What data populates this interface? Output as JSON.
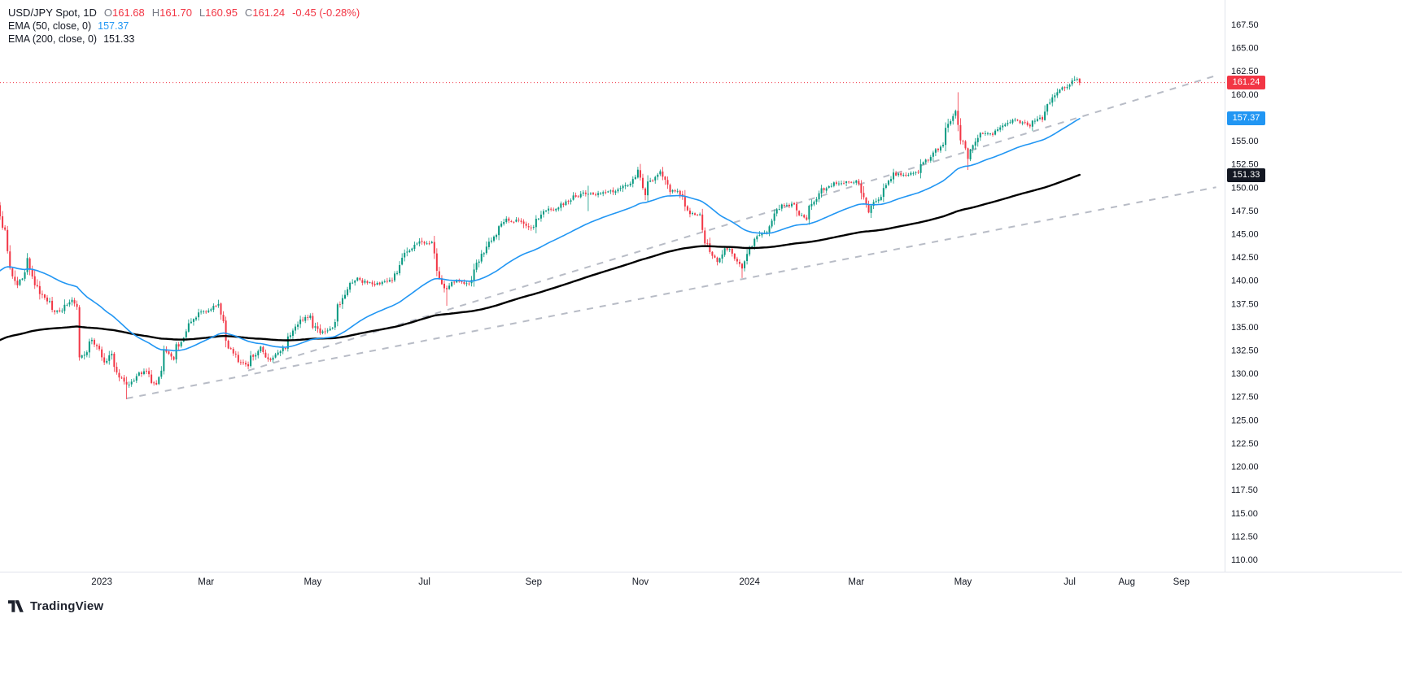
{
  "legend": {
    "symbol_title": "USD/JPY Spot, 1D",
    "ohlc": {
      "o_label": "O",
      "open": "161.68",
      "h_label": "H",
      "high": "161.70",
      "l_label": "L",
      "low": "160.95",
      "c_label": "C",
      "close": "161.24",
      "change": "-0.45 (-0.28%)"
    },
    "ema50": {
      "label": "EMA (50, close, 0)",
      "value": "157.37"
    },
    "ema200": {
      "label": "EMA (200, close, 0)",
      "value": "151.33"
    }
  },
  "badges": {
    "last_price": "161.24",
    "ema50": "157.37",
    "ema200": "151.33"
  },
  "logo": {
    "text": "TradingView"
  },
  "colors": {
    "up": "#089981",
    "down": "#F23645",
    "ema50": "#2196F3",
    "ema200": "#000000",
    "trend": "#B8BCC6",
    "axis_text": "#131722",
    "price_line": "#F23645",
    "axis_border": "#E0E3EB"
  },
  "chart_data": {
    "type": "candlestick",
    "symbol": "USD/JPY Spot",
    "interval": "1D",
    "title": "USD/JPY Spot, 1D",
    "last": {
      "open": 161.68,
      "high": 161.7,
      "low": 160.95,
      "close": 161.24,
      "change": -0.45,
      "change_pct": -0.28
    },
    "y_axis": {
      "min": 110.0,
      "max": 167.5,
      "step": 2.5
    },
    "x_axis": [
      {
        "label": "2023",
        "date": "2023-01-02"
      },
      {
        "label": "Mar",
        "date": "2023-03-01"
      },
      {
        "label": "May",
        "date": "2023-05-01"
      },
      {
        "label": "Jul",
        "date": "2023-07-03"
      },
      {
        "label": "Sep",
        "date": "2023-09-01"
      },
      {
        "label": "Nov",
        "date": "2023-11-01"
      },
      {
        "label": "2024",
        "date": "2024-01-02"
      },
      {
        "label": "Mar",
        "date": "2024-03-01"
      },
      {
        "label": "May",
        "date": "2024-05-01"
      },
      {
        "label": "Jul",
        "date": "2024-07-01"
      },
      {
        "label": "Aug",
        "date": "2024-08-01"
      },
      {
        "label": "Sep",
        "date": "2024-09-02"
      }
    ],
    "current_price_line": 161.24,
    "indicators": [
      {
        "name": "EMA",
        "period": 50,
        "value": 157.37,
        "seed": 140.5
      },
      {
        "name": "EMA",
        "period": 200,
        "value": 151.33,
        "seed": 133.3
      }
    ],
    "range": {
      "start": "2022-11-03",
      "end": "2024-07-05"
    },
    "anchors": [
      [
        "2022-11-03",
        148.2
      ],
      [
        "2022-11-04",
        146.7
      ],
      [
        "2022-11-08",
        145.6
      ],
      [
        "2022-11-10",
        140.9
      ],
      [
        "2022-11-15",
        139.4
      ],
      [
        "2022-11-21",
        142.0
      ],
      [
        "2022-11-25",
        139.1
      ],
      [
        "2022-11-30",
        138.1
      ],
      [
        "2022-12-05",
        136.7
      ],
      [
        "2022-12-09",
        136.6
      ],
      [
        "2022-12-15",
        137.7
      ],
      [
        "2022-12-19",
        136.9
      ],
      [
        "2022-12-20",
        131.7
      ],
      [
        "2022-12-27",
        133.5
      ],
      [
        "2023-01-03",
        131.0
      ],
      [
        "2023-01-06",
        132.1
      ],
      [
        "2023-01-12",
        129.2
      ],
      [
        "2023-01-16",
        128.5
      ],
      [
        "2023-01-20",
        129.6
      ],
      [
        "2023-01-26",
        130.2
      ],
      [
        "2023-02-01",
        128.9
      ],
      [
        "2023-02-06",
        132.6
      ],
      [
        "2023-02-10",
        131.4
      ],
      [
        "2023-02-16",
        134.0
      ],
      [
        "2023-02-24",
        136.4
      ],
      [
        "2023-03-02",
        136.7
      ],
      [
        "2023-03-08",
        137.3
      ],
      [
        "2023-03-13",
        133.2
      ],
      [
        "2023-03-17",
        131.8
      ],
      [
        "2023-03-24",
        130.7
      ],
      [
        "2023-03-31",
        132.8
      ],
      [
        "2023-04-05",
        131.3
      ],
      [
        "2023-04-13",
        132.6
      ],
      [
        "2023-04-19",
        134.7
      ],
      [
        "2023-04-28",
        136.3
      ],
      [
        "2023-05-04",
        134.3
      ],
      [
        "2023-05-11",
        134.8
      ],
      [
        "2023-05-18",
        138.7
      ],
      [
        "2023-05-25",
        140.1
      ],
      [
        "2023-05-30",
        139.8
      ],
      [
        "2023-06-06",
        139.6
      ],
      [
        "2023-06-14",
        140.1
      ],
      [
        "2023-06-22",
        143.1
      ],
      [
        "2023-06-30",
        144.3
      ],
      [
        "2023-07-06",
        144.0
      ],
      [
        "2023-07-11",
        140.3
      ],
      [
        "2023-07-14",
        138.8
      ],
      [
        "2023-07-20",
        140.1
      ],
      [
        "2023-07-27",
        139.5
      ],
      [
        "2023-08-03",
        142.6
      ],
      [
        "2023-08-11",
        144.9
      ],
      [
        "2023-08-17",
        146.4
      ],
      [
        "2023-08-25",
        146.4
      ],
      [
        "2023-08-31",
        145.5
      ],
      [
        "2023-09-07",
        147.3
      ],
      [
        "2023-09-15",
        147.8
      ],
      [
        "2023-09-25",
        148.9
      ],
      [
        "2023-09-29",
        149.4
      ],
      [
        "2023-10-06",
        149.3
      ],
      [
        "2023-10-16",
        149.5
      ],
      [
        "2023-10-26",
        150.4
      ],
      [
        "2023-10-31",
        151.7
      ],
      [
        "2023-11-03",
        149.4
      ],
      [
        "2023-11-10",
        151.5
      ],
      [
        "2023-11-13",
        151.7
      ],
      [
        "2023-11-17",
        149.6
      ],
      [
        "2023-11-22",
        149.5
      ],
      [
        "2023-11-29",
        147.2
      ],
      [
        "2023-12-05",
        147.1
      ],
      [
        "2023-12-07",
        144.1
      ],
      [
        "2023-12-14",
        142.1
      ],
      [
        "2023-12-20",
        143.5
      ],
      [
        "2023-12-28",
        141.4
      ],
      [
        "2024-01-05",
        144.6
      ],
      [
        "2024-01-11",
        145.3
      ],
      [
        "2024-01-19",
        148.1
      ],
      [
        "2024-01-26",
        148.1
      ],
      [
        "2024-02-02",
        146.4
      ],
      [
        "2024-02-09",
        149.3
      ],
      [
        "2024-02-16",
        150.2
      ],
      [
        "2024-02-26",
        150.7
      ],
      [
        "2024-03-04",
        150.5
      ],
      [
        "2024-03-08",
        147.1
      ],
      [
        "2024-03-15",
        149.0
      ],
      [
        "2024-03-22",
        151.4
      ],
      [
        "2024-03-29",
        151.3
      ],
      [
        "2024-04-05",
        151.6
      ],
      [
        "2024-04-12",
        153.2
      ],
      [
        "2024-04-19",
        154.6
      ],
      [
        "2024-04-26",
        158.3
      ],
      [
        "2024-04-29",
        156.3
      ],
      [
        "2024-05-01",
        154.6
      ],
      [
        "2024-05-03",
        152.9
      ],
      [
        "2024-05-10",
        155.8
      ],
      [
        "2024-05-17",
        155.7
      ],
      [
        "2024-05-24",
        156.9
      ],
      [
        "2024-05-31",
        157.3
      ],
      [
        "2024-06-07",
        156.7
      ],
      [
        "2024-06-14",
        157.4
      ],
      [
        "2024-06-21",
        159.8
      ],
      [
        "2024-06-27",
        160.8
      ],
      [
        "2024-07-02",
        161.4
      ],
      [
        "2024-07-03",
        161.7
      ],
      [
        "2024-07-05",
        161.24
      ]
    ],
    "wick_events": {
      "2023-01-16": {
        "low": 127.22
      },
      "2023-03-08": {
        "high": 137.91
      },
      "2023-07-14": {
        "low": 137.25
      },
      "2023-10-03": {
        "high": 150.16,
        "low": 147.43
      },
      "2023-11-13": {
        "high": 151.91
      },
      "2023-12-28": {
        "low": 140.25
      },
      "2024-04-29": {
        "high": 160.21
      },
      "2024-05-03": {
        "low": 151.86
      },
      "2024-07-03": {
        "high": 161.95
      }
    },
    "last_candle": {
      "date": "2024-07-05",
      "open": 161.68,
      "high": 161.7,
      "low": 160.95,
      "close": 161.24
    },
    "trendlines": [
      {
        "name": "lower-channel-line",
        "p1": {
          "date": "2023-01-16",
          "price": 127.3
        },
        "p2": {
          "date": "2024-09-20",
          "price": 150.0
        }
      },
      {
        "name": "upper-channel-line",
        "p1": {
          "date": "2023-03-24",
          "price": 130.3
        },
        "p2": {
          "date": "2024-09-20",
          "price": 162.0
        }
      }
    ]
  }
}
